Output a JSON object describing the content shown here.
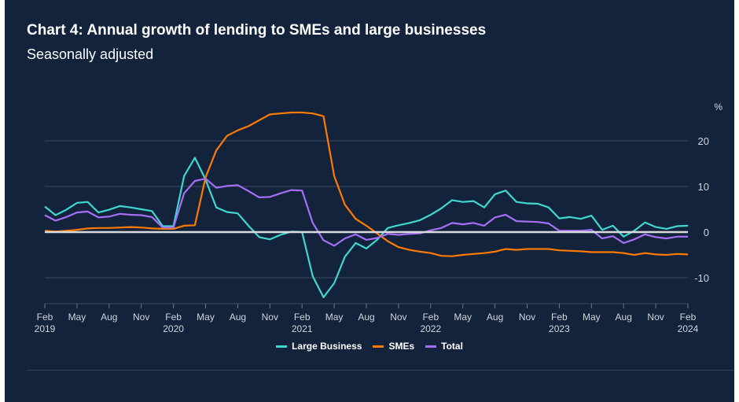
{
  "chart_data": {
    "type": "line",
    "title": "Chart 4: Annual growth of lending to SMEs and large businesses",
    "subtitle": "Seasonally adjusted",
    "ylabel": "%",
    "ylim": [
      -16,
      28
    ],
    "yticks": [
      20,
      10,
      0,
      -10
    ],
    "grid": true,
    "legend_position": "bottom",
    "x_start": "Feb 2019",
    "x_end": "Feb 2024",
    "xticks": [
      {
        "month": 0,
        "label": "Feb",
        "year": "2019"
      },
      {
        "month": 3,
        "label": "May",
        "year": ""
      },
      {
        "month": 6,
        "label": "Aug",
        "year": ""
      },
      {
        "month": 9,
        "label": "Nov",
        "year": ""
      },
      {
        "month": 12,
        "label": "Feb",
        "year": "2020"
      },
      {
        "month": 15,
        "label": "May",
        "year": ""
      },
      {
        "month": 18,
        "label": "Aug",
        "year": ""
      },
      {
        "month": 21,
        "label": "Nov",
        "year": ""
      },
      {
        "month": 24,
        "label": "Feb",
        "year": "2021"
      },
      {
        "month": 27,
        "label": "May",
        "year": ""
      },
      {
        "month": 30,
        "label": "Aug",
        "year": ""
      },
      {
        "month": 33,
        "label": "Nov",
        "year": ""
      },
      {
        "month": 36,
        "label": "Feb",
        "year": "2022"
      },
      {
        "month": 39,
        "label": "May",
        "year": ""
      },
      {
        "month": 42,
        "label": "Aug",
        "year": ""
      },
      {
        "month": 45,
        "label": "Nov",
        "year": ""
      },
      {
        "month": 48,
        "label": "Feb",
        "year": "2023"
      },
      {
        "month": 51,
        "label": "May",
        "year": ""
      },
      {
        "month": 54,
        "label": "Aug",
        "year": ""
      },
      {
        "month": 57,
        "label": "Nov",
        "year": ""
      },
      {
        "month": 60,
        "label": "Feb",
        "year": "2024"
      }
    ],
    "series": [
      {
        "name": "Large Business",
        "color": "#3fd6d0",
        "values": [
          5.6,
          3.7,
          4.9,
          6.4,
          6.6,
          4.3,
          4.9,
          5.7,
          5.4,
          5.0,
          4.6,
          1.3,
          1.3,
          12.3,
          16.3,
          11.5,
          5.4,
          4.4,
          4.1,
          1.4,
          -1.1,
          -1.6,
          -0.6,
          0.1,
          0.0,
          -9.7,
          -14.3,
          -11.2,
          -5.4,
          -2.4,
          -3.6,
          -1.7,
          0.9,
          1.5,
          2.0,
          2.6,
          3.8,
          5.2,
          7.0,
          6.6,
          6.8,
          5.4,
          8.3,
          9.1,
          6.6,
          6.3,
          6.2,
          5.4,
          3.0,
          3.3,
          2.9,
          3.6,
          0.5,
          1.4,
          -1.0,
          0.3,
          2.1,
          1.1,
          0.7,
          1.3,
          1.4
        ]
      },
      {
        "name": "SMEs",
        "color": "#ff7a00",
        "values": [
          0.3,
          0.1,
          0.3,
          0.5,
          0.8,
          0.9,
          0.9,
          1.0,
          1.1,
          1.0,
          0.8,
          0.7,
          0.7,
          1.4,
          1.5,
          12.0,
          17.9,
          21.1,
          22.3,
          23.2,
          24.5,
          25.8,
          26.0,
          26.2,
          26.2,
          26.0,
          25.4,
          12.3,
          6.0,
          2.9,
          1.4,
          -0.3,
          -2.0,
          -3.3,
          -3.9,
          -4.3,
          -4.6,
          -5.2,
          -5.3,
          -5.0,
          -4.8,
          -4.6,
          -4.3,
          -3.7,
          -3.9,
          -3.7,
          -3.7,
          -3.7,
          -4.0,
          -4.1,
          -4.2,
          -4.4,
          -4.4,
          -4.4,
          -4.6,
          -5.0,
          -4.6,
          -4.9,
          -5.0,
          -4.8,
          -4.9
        ]
      },
      {
        "name": "Total",
        "color": "#a66ef5",
        "values": [
          3.7,
          2.5,
          3.3,
          4.3,
          4.5,
          3.2,
          3.4,
          4.0,
          3.8,
          3.7,
          3.3,
          1.0,
          1.0,
          8.5,
          11.2,
          11.7,
          9.7,
          10.1,
          10.3,
          9.0,
          7.6,
          7.7,
          8.5,
          9.2,
          9.1,
          2.0,
          -1.8,
          -3.0,
          -1.4,
          -0.5,
          -1.7,
          -1.3,
          -0.4,
          -0.6,
          -0.4,
          -0.3,
          0.4,
          0.9,
          2.0,
          1.7,
          2.0,
          1.4,
          3.2,
          3.8,
          2.4,
          2.3,
          2.2,
          1.9,
          0.3,
          0.3,
          0.3,
          0.5,
          -1.4,
          -0.9,
          -2.4,
          -1.6,
          -0.5,
          -1.1,
          -1.4,
          -1.0,
          -1.0
        ]
      }
    ]
  }
}
